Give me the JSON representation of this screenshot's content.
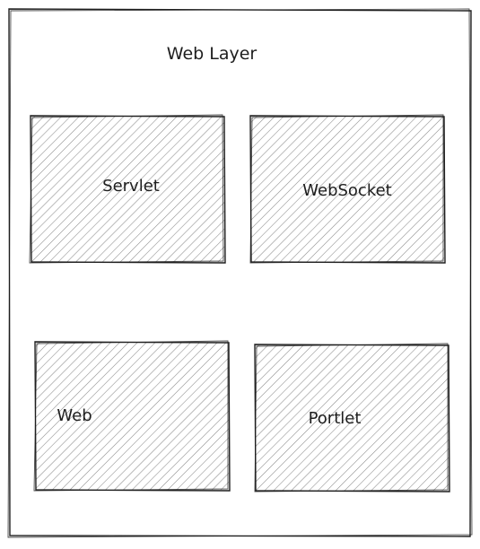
{
  "diagram": {
    "title": "Web Layer",
    "colors": {
      "stroke": "#1e1e1e",
      "hatch": "#8a8a8a",
      "background": "#ffffff"
    },
    "blocks": [
      {
        "label": "Servlet"
      },
      {
        "label": "WebSocket"
      },
      {
        "label": "Web"
      },
      {
        "label": "Portlet"
      }
    ]
  }
}
